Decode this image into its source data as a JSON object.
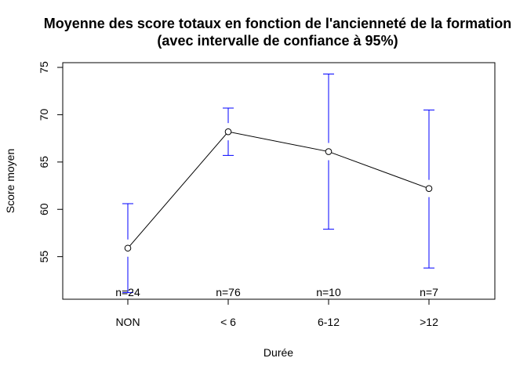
{
  "chart_data": {
    "type": "line",
    "title": "Moyenne des score totaux en fonction de l'ancienneté de la formation",
    "subtitle": "(avec intervalle de confiance à 95%)",
    "xlabel": "Durée",
    "ylabel": "Score moyen",
    "categories": [
      "NON",
      "< 6",
      "6-12",
      ">12"
    ],
    "series": [
      {
        "values": [
          55.9,
          68.2,
          66.1,
          62.2
        ],
        "ci_lower": [
          51.2,
          65.7,
          57.9,
          53.8
        ],
        "ci_upper": [
          60.6,
          70.7,
          74.3,
          70.5
        ]
      }
    ],
    "counts": [
      "n=24",
      "n=76",
      "n=10",
      "n=7"
    ],
    "ylim": [
      50.5,
      75.5
    ],
    "yticks": [
      55,
      60,
      65,
      70,
      75
    ],
    "colors": {
      "line": "#000000",
      "error_bars": "#0000ff"
    },
    "grid": false,
    "legend": "none"
  }
}
